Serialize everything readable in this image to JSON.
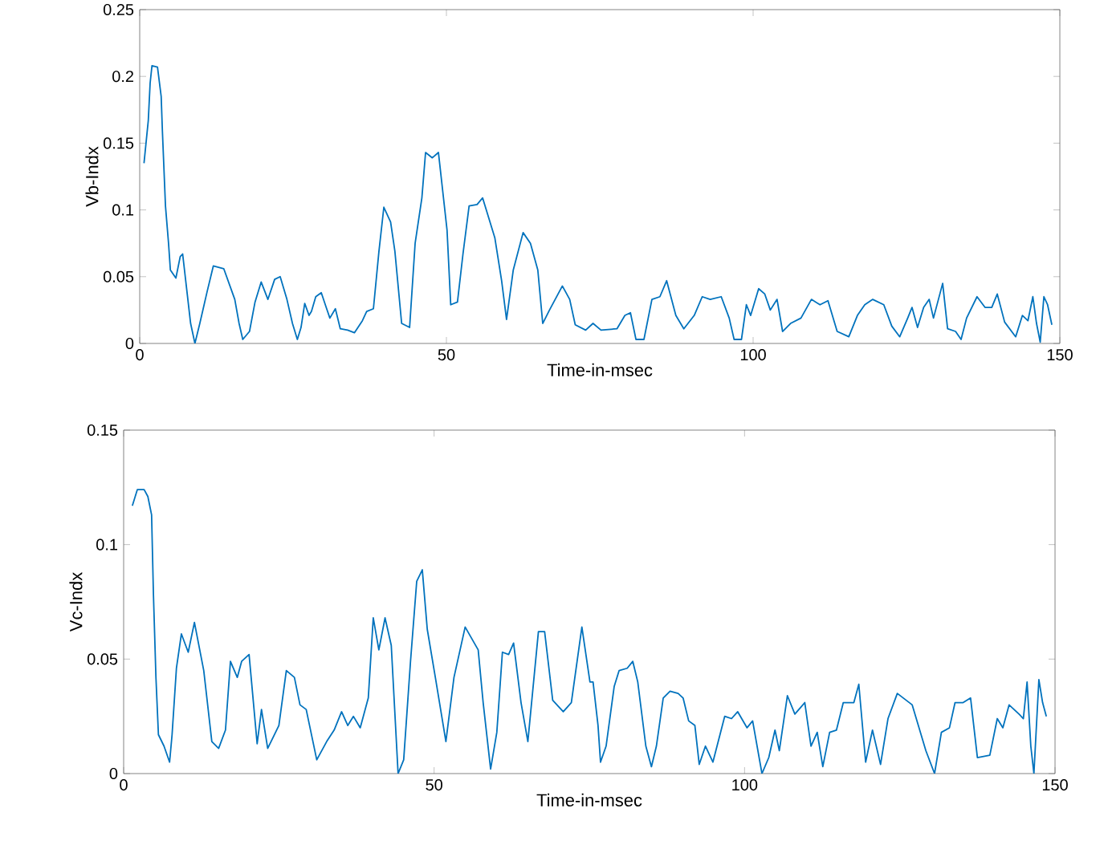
{
  "chart_data": [
    {
      "type": "line",
      "xlabel": "Time-in-msec",
      "ylabel": "Vb-Indx",
      "color": "#0072bd",
      "xlim": [
        0,
        150
      ],
      "ylim": [
        0,
        0.25
      ],
      "xticks": [
        0,
        50,
        100,
        150
      ],
      "yticks": [
        0,
        0.05,
        0.1,
        0.15,
        0.2,
        0.25
      ],
      "x": [
        0.7,
        1.4,
        1.7,
        2.0,
        2.9,
        3.5,
        3.7,
        4.2,
        4.7,
        5.0,
        5.9,
        6.6,
        7.0,
        7.7,
        8.3,
        9.0,
        9.8,
        11.0,
        12.0,
        13.7,
        15.5,
        16.2,
        16.8,
        17.9,
        18.8,
        19.8,
        20.9,
        22.0,
        22.9,
        24.0,
        24.9,
        25.7,
        26.3,
        26.9,
        27.6,
        28.0,
        28.7,
        29.6,
        30.4,
        31.0,
        31.9,
        32.7,
        33.9,
        35.0,
        36.3,
        37.0,
        38.1,
        39.0,
        39.8,
        40.9,
        41.6,
        42.7,
        44.0,
        44.9,
        46.0,
        46.6,
        47.7,
        48.7,
        50.1,
        50.7,
        51.8,
        52.7,
        53.7,
        55.0,
        55.9,
        57.9,
        59.0,
        59.8,
        60.9,
        62.5,
        63.7,
        64.9,
        65.7,
        66.8,
        68.9,
        70.1,
        71.0,
        72.7,
        73.9,
        75.2,
        77.8,
        79.1,
        80.0,
        80.9,
        82.2,
        83.5,
        84.8,
        85.9,
        87.4,
        88.7,
        90.4,
        91.7,
        93.0,
        94.8,
        96.1,
        96.9,
        98.1,
        98.9,
        99.6,
        100.9,
        101.9,
        102.8,
        103.9,
        104.8,
        106.1,
        107.8,
        109.5,
        110.9,
        112.2,
        113.7,
        115.6,
        117.0,
        118.2,
        119.5,
        121.3,
        122.6,
        123.9,
        125.2,
        125.9,
        126.8,
        127.8,
        128.7,
        129.4,
        130.9,
        131.7,
        133.0,
        133.9,
        134.8,
        136.5,
        137.8,
        138.9,
        139.8,
        141.0,
        142.8,
        143.9,
        144.8,
        145.6,
        146.2,
        146.8,
        147.4,
        148.0,
        148.7
      ],
      "values": [
        0.135,
        0.167,
        0.195,
        0.208,
        0.207,
        0.185,
        0.159,
        0.103,
        0.075,
        0.055,
        0.049,
        0.065,
        0.067,
        0.039,
        0.015,
        0.0,
        0.015,
        0.039,
        0.058,
        0.056,
        0.033,
        0.015,
        0.003,
        0.009,
        0.031,
        0.046,
        0.033,
        0.048,
        0.05,
        0.033,
        0.015,
        0.003,
        0.012,
        0.03,
        0.021,
        0.024,
        0.035,
        0.038,
        0.027,
        0.019,
        0.026,
        0.011,
        0.01,
        0.008,
        0.017,
        0.024,
        0.026,
        0.069,
        0.102,
        0.091,
        0.069,
        0.015,
        0.012,
        0.075,
        0.109,
        0.143,
        0.139,
        0.143,
        0.085,
        0.029,
        0.031,
        0.067,
        0.103,
        0.104,
        0.109,
        0.079,
        0.047,
        0.018,
        0.055,
        0.083,
        0.075,
        0.055,
        0.015,
        0.025,
        0.043,
        0.033,
        0.014,
        0.01,
        0.015,
        0.01,
        0.011,
        0.021,
        0.023,
        0.003,
        0.003,
        0.033,
        0.035,
        0.047,
        0.021,
        0.011,
        0.021,
        0.035,
        0.033,
        0.035,
        0.019,
        0.003,
        0.003,
        0.029,
        0.021,
        0.041,
        0.037,
        0.025,
        0.033,
        0.009,
        0.015,
        0.019,
        0.033,
        0.029,
        0.032,
        0.009,
        0.005,
        0.021,
        0.029,
        0.033,
        0.029,
        0.013,
        0.005,
        0.019,
        0.027,
        0.012,
        0.027,
        0.033,
        0.019,
        0.045,
        0.011,
        0.009,
        0.003,
        0.019,
        0.035,
        0.027,
        0.027,
        0.037,
        0.016,
        0.005,
        0.021,
        0.017,
        0.035,
        0.015,
        0.001,
        0.035,
        0.029,
        0.014
      ]
    },
    {
      "type": "line",
      "xlabel": "Time-in-msec",
      "ylabel": "Vc-Indx",
      "color": "#0072bd",
      "xlim": [
        0,
        150
      ],
      "ylim": [
        0,
        0.15
      ],
      "xticks": [
        0,
        50,
        100,
        150
      ],
      "yticks": [
        0,
        0.05,
        0.1,
        0.15
      ],
      "x": [
        1.4,
        2.2,
        3.3,
        3.9,
        4.5,
        4.8,
        5.2,
        5.6,
        6.5,
        7.4,
        7.8,
        8.5,
        9.3,
        10.4,
        11.4,
        12.9,
        14.2,
        15.3,
        16.4,
        17.2,
        18.3,
        19.0,
        20.2,
        21.5,
        22.2,
        23.2,
        25.0,
        26.2,
        27.5,
        28.4,
        29.4,
        31.1,
        32.7,
        33.9,
        35.1,
        36.1,
        37.0,
        38.1,
        39.4,
        40.2,
        41.1,
        42.1,
        43.1,
        44.2,
        45.1,
        46.2,
        47.2,
        48.1,
        48.9,
        50.2,
        51.9,
        53.2,
        55.0,
        57.1,
        57.9,
        59.1,
        60.1,
        61.0,
        62.0,
        62.8,
        64.0,
        65.1,
        66.8,
        67.8,
        69.1,
        70.8,
        72.1,
        73.8,
        75.1,
        75.6,
        76.4,
        76.8,
        77.7,
        79.0,
        79.8,
        81.1,
        82.0,
        82.8,
        84.1,
        85.0,
        85.8,
        86.9,
        88.0,
        89.3,
        90.1,
        91.0,
        92.0,
        92.7,
        93.7,
        94.9,
        96.8,
        97.9,
        98.9,
        100.4,
        101.3,
        102.8,
        103.9,
        104.9,
        105.6,
        106.9,
        108.1,
        109.7,
        110.7,
        111.7,
        112.6,
        113.7,
        114.8,
        115.9,
        117.6,
        118.4,
        119.5,
        120.6,
        121.9,
        123.1,
        124.6,
        127.0,
        129.2,
        130.6,
        131.7,
        133.0,
        133.9,
        135.2,
        136.4,
        137.5,
        139.5,
        140.7,
        141.6,
        142.6,
        144.2,
        144.9,
        145.5,
        146.1,
        146.6,
        147.4,
        148.0,
        148.6
      ],
      "values": [
        0.117,
        0.124,
        0.124,
        0.121,
        0.113,
        0.078,
        0.042,
        0.017,
        0.012,
        0.005,
        0.017,
        0.046,
        0.061,
        0.053,
        0.066,
        0.045,
        0.014,
        0.011,
        0.019,
        0.049,
        0.042,
        0.049,
        0.052,
        0.013,
        0.028,
        0.011,
        0.021,
        0.045,
        0.042,
        0.03,
        0.028,
        0.006,
        0.014,
        0.019,
        0.027,
        0.021,
        0.025,
        0.02,
        0.033,
        0.068,
        0.054,
        0.068,
        0.056,
        0.0,
        0.006,
        0.049,
        0.084,
        0.089,
        0.063,
        0.042,
        0.014,
        0.042,
        0.064,
        0.054,
        0.031,
        0.002,
        0.018,
        0.053,
        0.052,
        0.057,
        0.031,
        0.014,
        0.062,
        0.062,
        0.032,
        0.027,
        0.031,
        0.064,
        0.04,
        0.04,
        0.021,
        0.005,
        0.012,
        0.038,
        0.045,
        0.046,
        0.049,
        0.04,
        0.012,
        0.003,
        0.012,
        0.033,
        0.036,
        0.035,
        0.033,
        0.023,
        0.021,
        0.004,
        0.012,
        0.005,
        0.025,
        0.024,
        0.027,
        0.02,
        0.023,
        0.0,
        0.007,
        0.019,
        0.01,
        0.034,
        0.026,
        0.031,
        0.012,
        0.018,
        0.003,
        0.018,
        0.019,
        0.031,
        0.031,
        0.039,
        0.005,
        0.019,
        0.004,
        0.024,
        0.035,
        0.03,
        0.01,
        0.0,
        0.018,
        0.02,
        0.031,
        0.031,
        0.033,
        0.007,
        0.008,
        0.024,
        0.02,
        0.03,
        0.026,
        0.024,
        0.04,
        0.012,
        0.0,
        0.041,
        0.031,
        0.025
      ]
    }
  ]
}
